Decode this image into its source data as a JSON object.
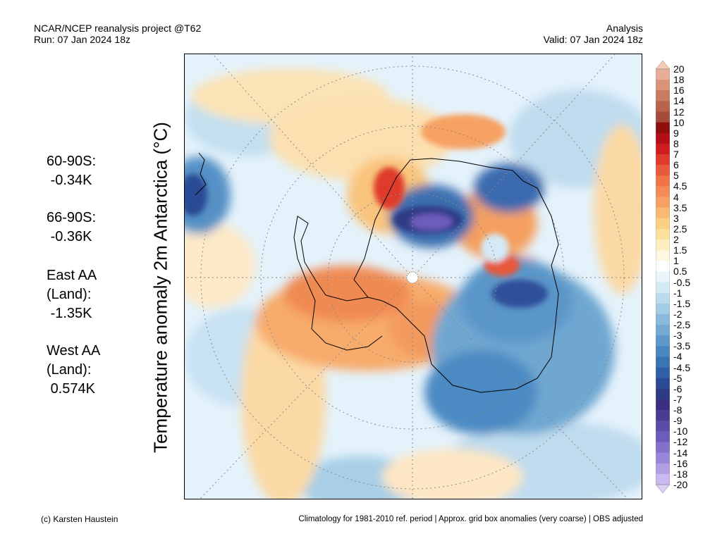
{
  "header": {
    "title": "NCAR/NCEP reanalysis project @T62",
    "run": "Run: 07 Jan 2024 18z",
    "type": "Analysis",
    "valid": "Valid: 07 Jan 2024 18z"
  },
  "y_title": "Temperature anomaly 2m Antarctica (°C)",
  "stats": [
    {
      "label": "60-90S:",
      "value": "-0.34K"
    },
    {
      "label": "66-90S:",
      "value": "-0.36K"
    },
    {
      "label": "East AA\n(Land):",
      "value": "-1.35K"
    },
    {
      "label": "West AA\n(Land):",
      "value": "0.574K"
    }
  ],
  "colorbar": {
    "levels": [
      "20",
      "18",
      "16",
      "14",
      "12",
      "10",
      "9",
      "8",
      "7",
      "6",
      "5",
      "4.5",
      "4",
      "3.5",
      "3",
      "2.5",
      "2",
      "1.5",
      "1",
      "0.5",
      "-0.5",
      "-1",
      "-1.5",
      "-2",
      "-2.5",
      "-3",
      "-3.5",
      "-4",
      "-4.5",
      "-5",
      "-6",
      "-7",
      "-8",
      "-9",
      "-10",
      "-12",
      "-14",
      "-16",
      "-18",
      "-20"
    ],
    "colors": [
      "#f6c9b5",
      "#e7ad96",
      "#d99379",
      "#c97a62",
      "#b9634e",
      "#a64b3a",
      "#8f0e0e",
      "#b30f16",
      "#cf1d1f",
      "#df3a2b",
      "#e8593b",
      "#f07448",
      "#f48a55",
      "#f7a264",
      "#f9ba72",
      "#fbd082",
      "#fce09d",
      "#fdeebf",
      "#fef8e2",
      "#ffffff",
      "#e9f4fb",
      "#d4eaf6",
      "#bcdcee",
      "#a2cce6",
      "#89badc",
      "#74aad3",
      "#5e99ca",
      "#4987bf",
      "#3a74b3",
      "#2f5fa5",
      "#2b4b94",
      "#2f3a85",
      "#3c2e80",
      "#4c3b93",
      "#5c4ba8",
      "#6e5cbc",
      "#8470cb",
      "#9a86d8",
      "#b29fe3",
      "#c9b9ee",
      "#dccff5"
    ]
  },
  "footer": {
    "credit": "(c) Karsten Haustein",
    "note": "Climatology for 1981-2010 ref. period | Approx. grid box anomalies (very coarse) | OBS adjusted"
  }
}
